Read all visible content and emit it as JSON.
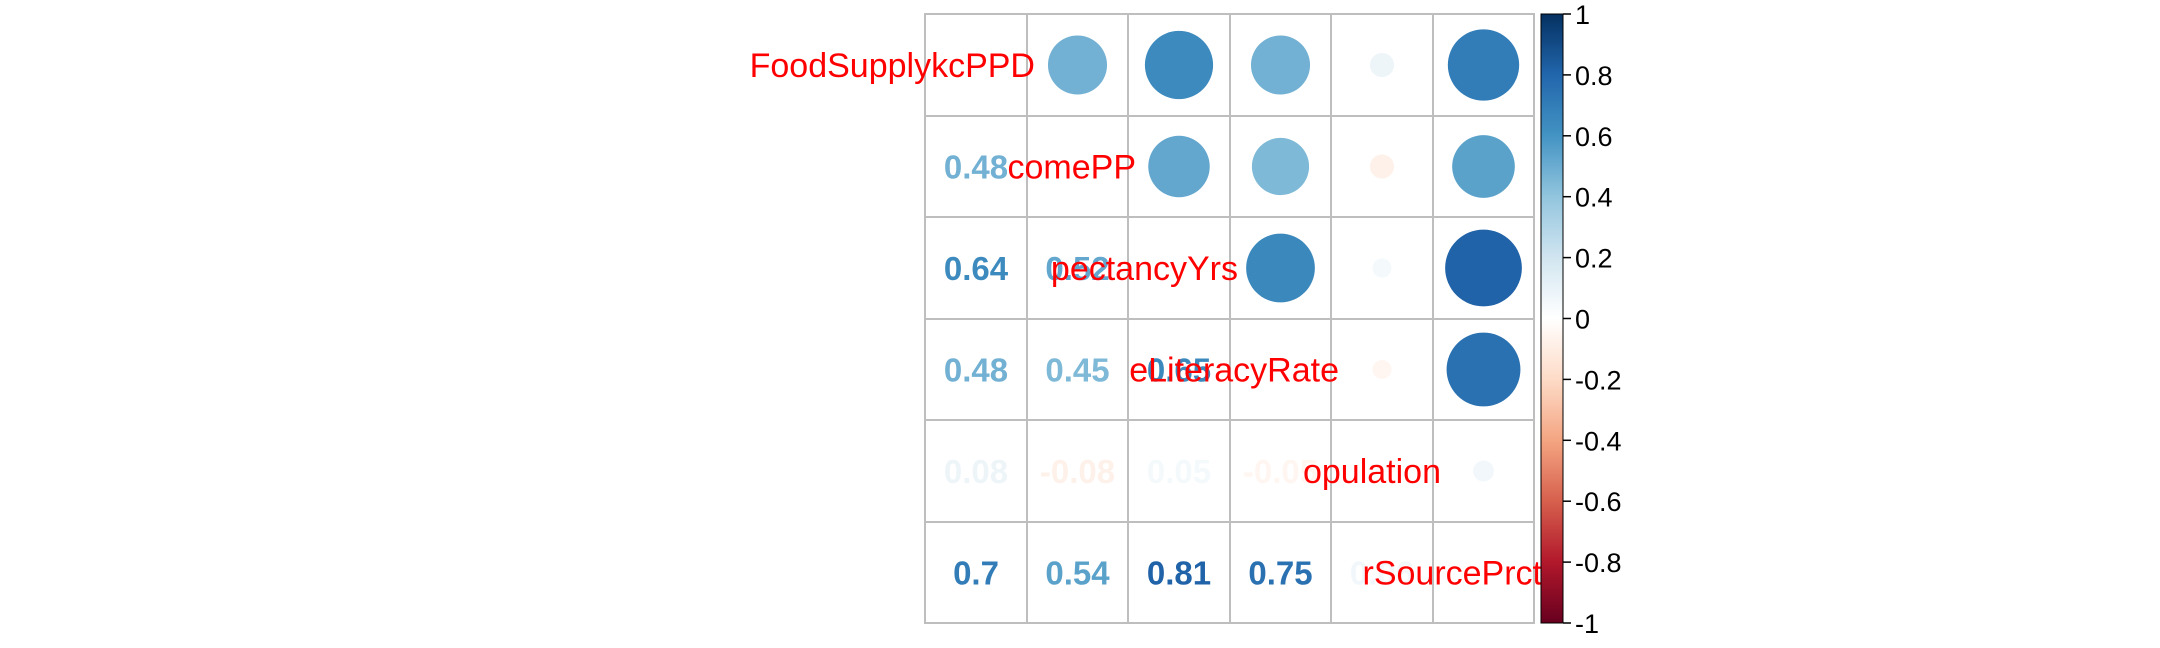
{
  "chart_data": {
    "type": "heatmap",
    "style": "correlation matrix, upper triangle circles, lower triangle numbers",
    "variables": [
      "FoodSupplykcPPD",
      "IncomePP",
      "LifeExpectancyYrs",
      "FemaleLiteracyRate",
      "Population",
      "WaterSourcePrct"
    ],
    "diagonal_labels_visible": [
      "FoodSupplykcPPD",
      "comePP",
      "pectancyYrs",
      "eLiteracyRate",
      "opulation",
      "rSourcePrct"
    ],
    "lower_labels": [
      [
        null,
        null,
        null,
        null,
        null,
        null
      ],
      [
        "0.48",
        null,
        null,
        null,
        null,
        null
      ],
      [
        "0.64",
        "0.52",
        null,
        null,
        null,
        null
      ],
      [
        "0.48",
        "0.45",
        "0.65",
        null,
        null,
        null
      ],
      [
        "0.08",
        "-0.08",
        "0.05",
        "-0.05",
        null,
        null
      ],
      [
        "0.7",
        "0.54",
        "0.81",
        "0.75",
        "0.06",
        null
      ]
    ],
    "matrix": [
      [
        1,
        0.48,
        0.64,
        0.48,
        0.08,
        0.7
      ],
      [
        0.48,
        1,
        0.52,
        0.45,
        -0.08,
        0.54
      ],
      [
        0.64,
        0.52,
        1,
        0.65,
        0.05,
        0.81
      ],
      [
        0.48,
        0.45,
        0.65,
        1,
        -0.05,
        0.75
      ],
      [
        0.08,
        -0.08,
        0.05,
        -0.05,
        1,
        0.06
      ],
      [
        0.7,
        0.54,
        0.81,
        0.75,
        0.06,
        1
      ]
    ],
    "colorbar": {
      "ticks": [
        1,
        0.8,
        0.6,
        0.4,
        0.2,
        0,
        -0.2,
        -0.4,
        -0.6,
        -0.8,
        -1
      ],
      "tick_labels": [
        "1",
        "0.8",
        "0.6",
        "0.4",
        "0.2",
        "0",
        "-0.2",
        "-0.4",
        "-0.6",
        "-0.8",
        "-1"
      ],
      "range": [
        -1,
        1
      ]
    },
    "palette": [
      "#67001F",
      "#B2182B",
      "#D6604D",
      "#F4A582",
      "#FDDBC7",
      "#FFFFFF",
      "#D1E5F0",
      "#92C5DE",
      "#4393C3",
      "#2166AC",
      "#053061"
    ],
    "label_color": "#FF0000",
    "grid_color": "#BEBEBE"
  }
}
